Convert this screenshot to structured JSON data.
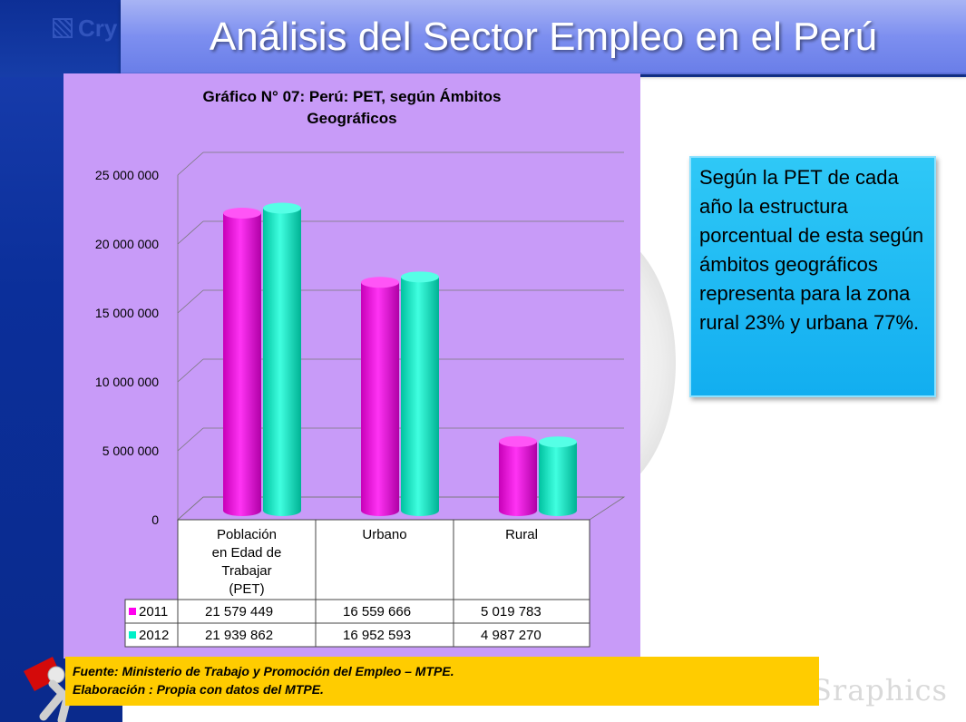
{
  "header": {
    "title": "Análisis del Sector Empleo en el Perú",
    "logo_text": "Cry"
  },
  "watermark": "Sraphics",
  "info_box": {
    "text": "Según la PET de cada año la estructura porcentual de esta según ámbitos geográficos representa para la zona rural 23% y urbana 77%."
  },
  "source": {
    "line1": "Fuente: Ministerio de Trabajo y Promoción del Empleo – MTPE.",
    "line2": "Elaboración : Propia con datos del MTPE."
  },
  "colors": {
    "series_2011": "#ff00ee",
    "series_2012": "#00f0c8",
    "panel": "#c89bf8",
    "info_box": "#12aef0",
    "source_box": "#ffcc00"
  },
  "chart_data": {
    "type": "bar",
    "title": "Gráfico N° 07: Perú: PET, según Ámbitos Geográficos",
    "title_lines": [
      "Gráfico N° 07: Perú: PET, según Ámbitos",
      "Geográficos"
    ],
    "categories": [
      "Población en Edad de Trabajar (PET)",
      "Urbano",
      "Rural"
    ],
    "category_lines": [
      [
        "Población",
        "en Edad de",
        "Trabajar",
        "(PET)"
      ],
      [
        "Urbano"
      ],
      [
        "Rural"
      ]
    ],
    "series": [
      {
        "name": "2011",
        "values": [
          21579449,
          16559666,
          5019783
        ],
        "labels": [
          "21 579 449",
          "16 559 666",
          "5 019 783"
        ]
      },
      {
        "name": "2012",
        "values": [
          21939862,
          16952593,
          4987270
        ],
        "labels": [
          "21 939 862",
          "16 952 593",
          "4 987 270"
        ]
      }
    ],
    "ylim": [
      0,
      25000000
    ],
    "yticks": [
      0,
      5000000,
      10000000,
      15000000,
      20000000,
      25000000
    ],
    "ytick_labels": [
      "0",
      "5 000 000",
      "10 000 000",
      "15 000 000",
      "20 000 000",
      "25 000 000"
    ],
    "grid": true,
    "legend": "data-table"
  }
}
